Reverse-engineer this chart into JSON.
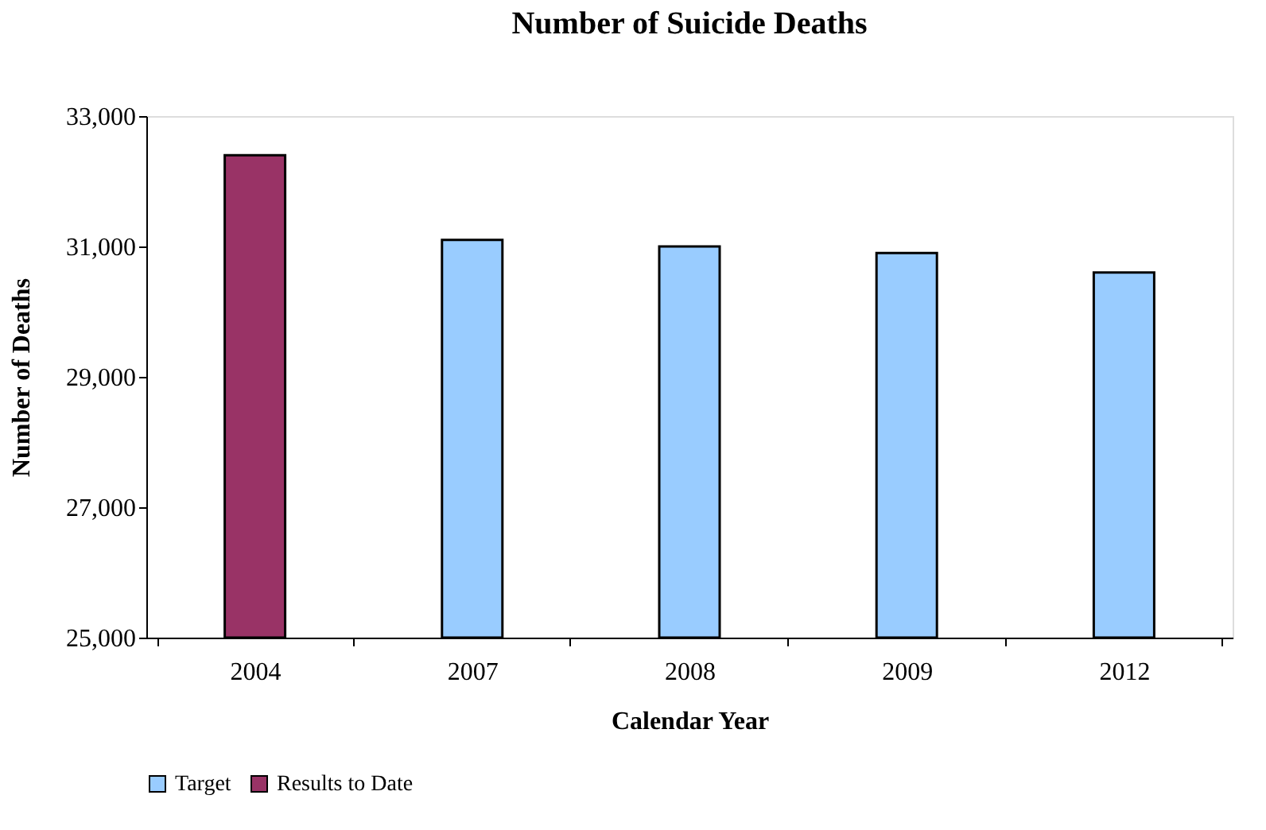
{
  "chart_data": {
    "type": "bar",
    "title": "Number of Suicide Deaths",
    "xlabel": "Calendar Year",
    "ylabel": "Number of Deaths",
    "categories": [
      "2004",
      "2007",
      "2008",
      "2009",
      "2012"
    ],
    "series": [
      {
        "name": "Target",
        "color": "#99ccff",
        "values": [
          null,
          31100,
          31000,
          30900,
          30600
        ]
      },
      {
        "name": "Results to Date",
        "color": "#993366",
        "values": [
          32400,
          null,
          null,
          null,
          null
        ]
      }
    ],
    "ylim": [
      25000,
      33000
    ],
    "yticks": [
      {
        "value": 25000,
        "label": "25,000"
      },
      {
        "value": 27000,
        "label": "27,000"
      },
      {
        "value": 29000,
        "label": "29,000"
      },
      {
        "value": 31000,
        "label": "31,000"
      },
      {
        "value": 33000,
        "label": "33,000"
      }
    ],
    "grid": false,
    "legend": "bottom"
  }
}
